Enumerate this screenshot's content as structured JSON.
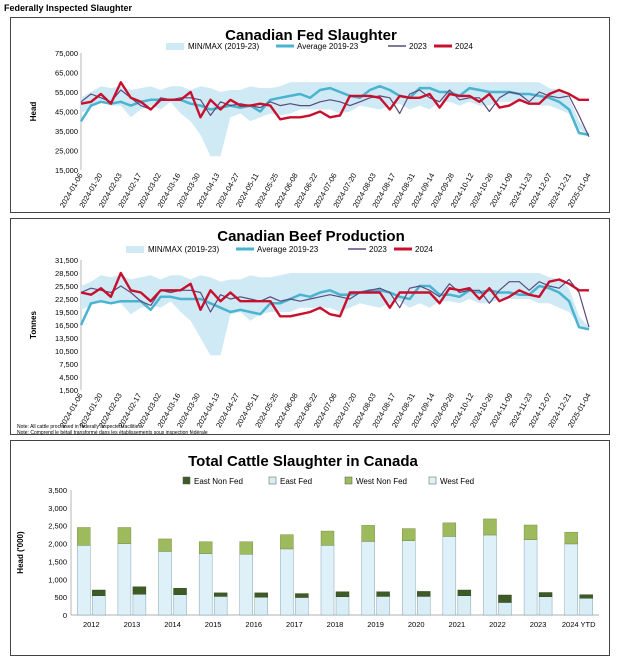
{
  "header": {
    "title": "Federally Inspected Slaughter"
  },
  "colors": {
    "band": "#cfe9f5",
    "average": "#4ab3cf",
    "y2023": "#5a4a7c",
    "y2024": "#c8102e",
    "east_non_fed": "#3f5b25",
    "east_fed": "#d8edf5",
    "west_non_fed": "#9dbb5c",
    "west_fed": "#dff1f8"
  },
  "chart_data": [
    {
      "type": "line",
      "title": "Canadian Fed Slaughter",
      "ylabel": "Head",
      "ylim": [
        15000,
        75000
      ],
      "y_ticks": [
        "15,000",
        "25,000",
        "35,000",
        "45,000",
        "55,000",
        "65,000",
        "75,000"
      ],
      "x_labels": [
        "2024-01-06",
        "2024-01-20",
        "2024-02-03",
        "2024-02-17",
        "2024-03-02",
        "2024-03-16",
        "2024-03-30",
        "2024-04-13",
        "2024-04-27",
        "2024-05-11",
        "2024-05-25",
        "2024-06-08",
        "2024-06-22",
        "2024-07-06",
        "2024-07-20",
        "2024-08-03",
        "2024-08-17",
        "2024-08-31",
        "2024-09-14",
        "2024-09-28",
        "2024-10-12",
        "2024-10-26",
        "2024-11-09",
        "2024-11-23",
        "2024-12-07",
        "2024-12-21",
        "2025-01-04"
      ],
      "legend": [
        "MIN/MAX (2019-23)",
        "Average 2019-23",
        "2023",
        "2024"
      ],
      "band_min": [
        44000,
        47000,
        50000,
        48000,
        48000,
        42000,
        46000,
        48000,
        46000,
        50000,
        44000,
        40000,
        33000,
        22000,
        22000,
        42000,
        44000,
        40000,
        42000,
        44000,
        43000,
        44000,
        46000,
        46000,
        46000,
        46000,
        44000,
        45000,
        48000,
        47000,
        46000,
        48000,
        49000,
        46000,
        48000,
        46000,
        50000,
        50000,
        48000,
        50000,
        48000,
        48000,
        50000,
        50000,
        50000,
        50000,
        48000,
        48000,
        46000,
        44000,
        36000,
        33000
      ],
      "band_max": [
        52000,
        55000,
        58000,
        57000,
        58000,
        56000,
        57000,
        58000,
        56000,
        58000,
        58000,
        56000,
        58000,
        57000,
        55000,
        56000,
        56000,
        58000,
        57000,
        57000,
        58000,
        60000,
        60000,
        60000,
        60000,
        60000,
        60000,
        60000,
        60000,
        60000,
        60000,
        60000,
        60000,
        60000,
        60000,
        60000,
        60000,
        60000,
        60000,
        60000,
        60000,
        60000,
        60000,
        60000,
        60000,
        60000,
        60000,
        57000,
        56000,
        52000,
        40000,
        34000
      ],
      "average": [
        40000,
        48000,
        50000,
        49000,
        50000,
        48000,
        50000,
        51000,
        51000,
        51000,
        51000,
        49000,
        48000,
        46000,
        47000,
        48000,
        47000,
        48000,
        45000,
        51000,
        52000,
        53000,
        54000,
        52000,
        56000,
        57000,
        55000,
        53000,
        52000,
        56000,
        58000,
        56000,
        53000,
        52000,
        57000,
        57000,
        55000,
        55000,
        53000,
        57000,
        56000,
        55000,
        55000,
        55000,
        54000,
        54000,
        53000,
        52000,
        50000,
        46000,
        34000,
        33000
      ],
      "series_2023": [
        50000,
        54000,
        52000,
        50000,
        56000,
        52000,
        48000,
        46000,
        52000,
        51000,
        52000,
        52000,
        51000,
        43000,
        50000,
        48000,
        49000,
        48000,
        47000,
        50000,
        48000,
        49000,
        48000,
        48000,
        50000,
        51000,
        50000,
        48000,
        50000,
        52000,
        53000,
        52000,
        44000,
        54000,
        56000,
        52000,
        50000,
        56000,
        51000,
        52000,
        52000,
        45000,
        52000,
        55000,
        54000,
        50000,
        55000,
        53000,
        52000,
        53000,
        43000,
        32000
      ],
      "series_2024": [
        49000,
        50000,
        54000,
        49000,
        60000,
        52000,
        50000,
        46000,
        51000,
        51000,
        51000,
        55000,
        42000,
        51000,
        46000,
        51000,
        48000,
        48000,
        49000,
        48000,
        41000,
        42000,
        42000,
        43000,
        45000,
        42000,
        43000,
        53000,
        53000,
        53000,
        52000,
        46000,
        53000,
        52000,
        52000,
        54000,
        47000,
        54000,
        53000,
        53000,
        50000,
        54000,
        47000,
        48000,
        51000,
        49000,
        49000,
        54000,
        56000,
        54000,
        51000,
        51000
      ]
    },
    {
      "type": "line",
      "title": "Canadian Beef Production",
      "ylabel": "Tonnes",
      "ylim": [
        1500,
        31500
      ],
      "y_ticks": [
        "1,500",
        "4,500",
        "7,500",
        "10,500",
        "13,500",
        "16,500",
        "19,500",
        "22,500",
        "25,500",
        "28,500",
        "31,500"
      ],
      "x_labels": [
        "2024-01-06",
        "2024-01-20",
        "2024-02-03",
        "2024-02-17",
        "2024-03-02",
        "2024-03-16",
        "2024-03-30",
        "2024-04-13",
        "2024-04-27",
        "2024-05-11",
        "2024-05-25",
        "2024-06-08",
        "2024-06-22",
        "2024-07-06",
        "2024-07-20",
        "2024-08-03",
        "2024-08-17",
        "2024-08-31",
        "2024-09-14",
        "2024-09-28",
        "2024-10-12",
        "2024-10-26",
        "2024-11-09",
        "2024-11-23",
        "2024-12-07",
        "2024-12-21",
        "2025-01-04"
      ],
      "legend": [
        "MIN/MAX (2019-23)",
        "Average 2019-23",
        "2023",
        "2024"
      ],
      "band_min": [
        20000,
        21000,
        22000,
        21500,
        21500,
        19000,
        20500,
        21000,
        20500,
        22000,
        19500,
        17500,
        13500,
        9500,
        9500,
        19000,
        19500,
        17500,
        19000,
        19500,
        19500,
        19500,
        20500,
        20500,
        20500,
        20500,
        19500,
        20500,
        21500,
        21000,
        20500,
        21500,
        22000,
        20500,
        21500,
        20500,
        22000,
        22000,
        21500,
        22500,
        21500,
        21500,
        22500,
        22500,
        22500,
        22500,
        21500,
        21500,
        20500,
        19500,
        16500,
        15500
      ],
      "band_max": [
        25500,
        26500,
        28000,
        27500,
        28000,
        27000,
        27500,
        28000,
        27000,
        28000,
        28000,
        27000,
        28000,
        27500,
        26500,
        27000,
        27000,
        28000,
        27500,
        27500,
        28000,
        28500,
        28500,
        28500,
        28500,
        28500,
        28500,
        28500,
        28500,
        28500,
        28500,
        28500,
        28500,
        28500,
        28500,
        28500,
        28500,
        28500,
        28500,
        28500,
        28500,
        28500,
        28500,
        28500,
        28500,
        28500,
        28500,
        27500,
        27000,
        25000,
        18500,
        16000
      ],
      "average": [
        16500,
        21500,
        22000,
        21500,
        22000,
        22000,
        22000,
        20000,
        23000,
        23000,
        22500,
        22500,
        22500,
        21500,
        20500,
        19500,
        20000,
        19500,
        19000,
        21500,
        21500,
        22500,
        23500,
        23000,
        24000,
        24500,
        23500,
        23500,
        24000,
        24500,
        24500,
        24000,
        23000,
        22500,
        25500,
        25500,
        23500,
        23500,
        23000,
        24500,
        24000,
        24500,
        24000,
        24000,
        23500,
        23500,
        25500,
        25000,
        24000,
        22000,
        16000,
        15500
      ],
      "series_2023": [
        24000,
        25000,
        24500,
        24000,
        25500,
        24000,
        22000,
        21000,
        24500,
        24000,
        24500,
        24500,
        24000,
        19500,
        23500,
        22500,
        23000,
        22500,
        22000,
        23000,
        22000,
        22500,
        22000,
        22500,
        23000,
        23500,
        23000,
        22500,
        24000,
        24500,
        25000,
        24000,
        20500,
        25000,
        25500,
        24500,
        23000,
        26000,
        24000,
        24500,
        24500,
        21500,
        24500,
        26500,
        26500,
        24500,
        26500,
        25500,
        25000,
        27000,
        24000,
        16000
      ],
      "series_2024": [
        24000,
        23500,
        25000,
        23000,
        28500,
        24500,
        24000,
        22000,
        24500,
        24500,
        24500,
        26000,
        20000,
        24500,
        22000,
        24000,
        22000,
        22000,
        22000,
        22000,
        18500,
        18500,
        19000,
        19500,
        20500,
        19000,
        18500,
        24000,
        24000,
        24000,
        24000,
        20500,
        24000,
        24000,
        24000,
        24000,
        21500,
        25000,
        24500,
        25000,
        22500,
        25000,
        22000,
        23000,
        24500,
        23500,
        23000,
        26500,
        27000,
        26000,
        24500,
        24500
      ]
    },
    {
      "type": "bar",
      "title": "Total Cattle Slaughter in Canada",
      "ylabel": "Head ('000)",
      "ylim": [
        0,
        3500
      ],
      "y_ticks": [
        "0",
        "500",
        "1,000",
        "1,500",
        "2,000",
        "2,500",
        "3,000",
        "3,500"
      ],
      "legend": [
        "East Non Fed",
        "East Fed",
        "West Non Fed",
        "West Fed"
      ],
      "categories": [
        "2012",
        "2013",
        "2014",
        "2015",
        "2016",
        "2017",
        "2018",
        "2019",
        "2020",
        "2021",
        "2022",
        "2023",
        "2024 YTD"
      ],
      "west_fed": [
        1950,
        2000,
        1780,
        1720,
        1700,
        1850,
        1950,
        2060,
        2080,
        2200,
        2240,
        2110,
        1990
      ],
      "west_non_fed": [
        500,
        450,
        350,
        330,
        350,
        400,
        400,
        450,
        340,
        380,
        450,
        410,
        330
      ],
      "east_fed": [
        540,
        580,
        570,
        520,
        500,
        490,
        510,
        520,
        520,
        540,
        350,
        510,
        470
      ],
      "east_non_fed": [
        160,
        210,
        180,
        100,
        120,
        110,
        140,
        130,
        140,
        160,
        210,
        120,
        100
      ]
    }
  ],
  "notes": [
    "Note: All cattle processed in federally inspected facilities",
    "Note: Comprend le bétail transformé dans les établissements sous inspection fédérale"
  ]
}
